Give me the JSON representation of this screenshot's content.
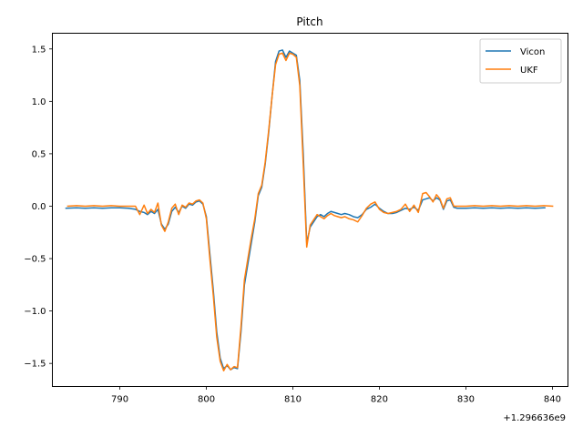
{
  "chart_data": {
    "type": "line",
    "title": "Pitch",
    "xlabel": "",
    "ylabel": "",
    "x_offset_label": "+1.296636e9",
    "xlim": [
      782.2,
      841.8
    ],
    "ylim": [
      -1.72,
      1.65
    ],
    "x_ticks": [
      790,
      800,
      810,
      820,
      830,
      840
    ],
    "x_tick_labels": [
      "790",
      "800",
      "810",
      "820",
      "830",
      "840"
    ],
    "y_ticks": [
      -1.5,
      -1.0,
      -0.5,
      0.0,
      0.5,
      1.0,
      1.5
    ],
    "y_tick_labels": [
      "−1.5",
      "−1.0",
      "−0.5",
      "0.0",
      "0.5",
      "1.0",
      "1.5"
    ],
    "grid": false,
    "legend_position": "top-right",
    "colors": {
      "Vicon": "#1f77b4",
      "UKF": "#ff7f0e"
    },
    "series": [
      {
        "name": "Vicon",
        "x": [
          783.7,
          785.0,
          786.0,
          787.0,
          788.0,
          789.0,
          790.0,
          791.0,
          791.8,
          792.3,
          792.8,
          793.2,
          793.6,
          794.0,
          794.4,
          794.8,
          795.2,
          795.6,
          796.0,
          796.4,
          796.8,
          797.2,
          797.6,
          798.0,
          798.4,
          798.8,
          799.2,
          799.6,
          800.0,
          800.4,
          800.8,
          801.2,
          801.6,
          802.0,
          802.4,
          802.8,
          803.2,
          803.6,
          804.0,
          804.4,
          804.8,
          805.2,
          805.6,
          806.0,
          806.4,
          806.8,
          807.2,
          807.6,
          808.0,
          808.4,
          808.8,
          809.2,
          809.6,
          810.0,
          810.4,
          810.8,
          811.2,
          811.6,
          812.0,
          812.4,
          812.8,
          813.2,
          813.6,
          814.0,
          814.4,
          814.8,
          815.2,
          815.6,
          816.0,
          816.5,
          817.0,
          817.5,
          818.0,
          818.5,
          819.0,
          819.5,
          820.0,
          820.5,
          821.0,
          821.5,
          822.0,
          822.5,
          823.0,
          823.5,
          824.0,
          824.5,
          825.0,
          825.4,
          825.8,
          826.2,
          826.6,
          827.0,
          827.4,
          827.8,
          828.2,
          828.6,
          829.0,
          830.0,
          831.0,
          832.0,
          833.0,
          834.0,
          835.0,
          836.0,
          837.0,
          838.0,
          839.0,
          839.2
        ],
        "y": [
          -0.02,
          -0.015,
          -0.02,
          -0.015,
          -0.02,
          -0.015,
          -0.015,
          -0.02,
          -0.03,
          -0.05,
          -0.06,
          -0.08,
          -0.05,
          -0.07,
          -0.03,
          -0.17,
          -0.22,
          -0.17,
          -0.05,
          -0.01,
          -0.06,
          0.0,
          -0.02,
          0.02,
          0.01,
          0.04,
          0.05,
          0.02,
          -0.1,
          -0.45,
          -0.8,
          -1.2,
          -1.45,
          -1.55,
          -1.52,
          -1.56,
          -1.54,
          -1.55,
          -1.2,
          -0.75,
          -0.55,
          -0.35,
          -0.15,
          0.1,
          0.18,
          0.4,
          0.7,
          1.05,
          1.38,
          1.48,
          1.49,
          1.42,
          1.48,
          1.46,
          1.44,
          1.2,
          0.5,
          -0.35,
          -0.2,
          -0.15,
          -0.1,
          -0.08,
          -0.1,
          -0.07,
          -0.05,
          -0.06,
          -0.07,
          -0.08,
          -0.07,
          -0.08,
          -0.1,
          -0.11,
          -0.08,
          -0.03,
          -0.01,
          0.02,
          -0.02,
          -0.05,
          -0.07,
          -0.07,
          -0.06,
          -0.04,
          -0.02,
          -0.03,
          -0.01,
          -0.04,
          0.06,
          0.07,
          0.08,
          0.05,
          0.08,
          0.06,
          -0.03,
          0.05,
          0.06,
          -0.01,
          -0.02,
          -0.02,
          -0.015,
          -0.02,
          -0.015,
          -0.02,
          -0.015,
          -0.02,
          -0.015,
          -0.02,
          -0.015,
          -0.015
        ]
      },
      {
        "name": "UKF",
        "x": [
          783.9,
          785.0,
          786.0,
          787.0,
          788.0,
          789.0,
          790.0,
          791.0,
          791.8,
          792.3,
          792.8,
          793.2,
          793.6,
          794.0,
          794.4,
          794.8,
          795.2,
          795.6,
          796.0,
          796.4,
          796.8,
          797.2,
          797.6,
          798.0,
          798.4,
          798.8,
          799.2,
          799.6,
          800.0,
          800.4,
          800.8,
          801.2,
          801.6,
          802.0,
          802.4,
          802.8,
          803.2,
          803.6,
          804.0,
          804.4,
          804.8,
          805.2,
          805.6,
          806.0,
          806.4,
          806.8,
          807.2,
          807.6,
          808.0,
          808.4,
          808.8,
          809.2,
          809.6,
          810.0,
          810.4,
          810.8,
          811.2,
          811.6,
          812.0,
          812.4,
          812.8,
          813.2,
          813.6,
          814.0,
          814.4,
          814.8,
          815.2,
          815.6,
          816.0,
          816.5,
          817.0,
          817.5,
          818.0,
          818.5,
          819.0,
          819.5,
          820.0,
          820.5,
          821.0,
          821.5,
          822.0,
          822.5,
          823.0,
          823.5,
          824.0,
          824.5,
          825.0,
          825.4,
          825.8,
          826.2,
          826.6,
          827.0,
          827.4,
          827.8,
          828.2,
          828.6,
          829.0,
          830.0,
          831.0,
          832.0,
          833.0,
          834.0,
          835.0,
          836.0,
          837.0,
          838.0,
          839.0,
          840.1
        ],
        "y": [
          0.0,
          0.005,
          0.0,
          0.005,
          0.0,
          0.005,
          0.0,
          0.0,
          0.0,
          -0.08,
          0.01,
          -0.07,
          -0.03,
          -0.06,
          0.03,
          -0.18,
          -0.24,
          -0.15,
          -0.02,
          0.02,
          -0.08,
          0.01,
          -0.01,
          0.03,
          0.02,
          0.05,
          0.06,
          0.03,
          -0.12,
          -0.5,
          -0.85,
          -1.25,
          -1.48,
          -1.57,
          -1.51,
          -1.56,
          -1.53,
          -1.54,
          -1.15,
          -0.7,
          -0.5,
          -0.3,
          -0.12,
          0.12,
          0.2,
          0.42,
          0.72,
          1.05,
          1.35,
          1.45,
          1.46,
          1.39,
          1.46,
          1.45,
          1.42,
          1.15,
          0.4,
          -0.39,
          -0.18,
          -0.13,
          -0.08,
          -0.1,
          -0.12,
          -0.09,
          -0.07,
          -0.09,
          -0.1,
          -0.11,
          -0.1,
          -0.12,
          -0.13,
          -0.15,
          -0.09,
          -0.02,
          0.02,
          0.04,
          -0.03,
          -0.06,
          -0.07,
          -0.06,
          -0.05,
          -0.03,
          0.02,
          -0.05,
          0.01,
          -0.06,
          0.12,
          0.13,
          0.09,
          0.04,
          0.11,
          0.07,
          -0.02,
          0.07,
          0.08,
          0.0,
          0.0,
          0.0,
          0.005,
          0.0,
          0.005,
          0.0,
          0.005,
          0.0,
          0.005,
          0.0,
          0.005,
          0.0
        ]
      }
    ]
  }
}
